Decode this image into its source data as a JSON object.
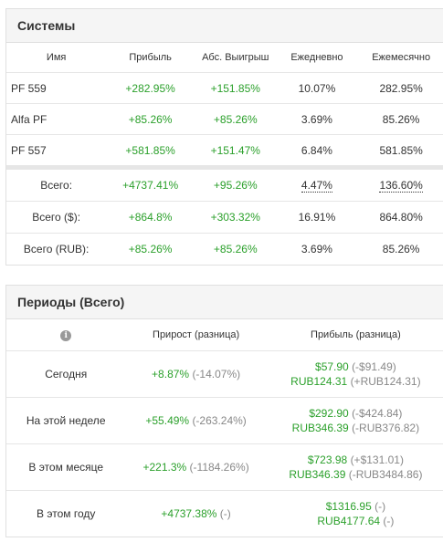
{
  "systems": {
    "title": "Системы",
    "columns": [
      "Имя",
      "Прибыль",
      "Абс. Выигрыш",
      "Ежедневно",
      "Ежемесячно"
    ],
    "rows": [
      {
        "name": "PF 559",
        "profit": "+282.95%",
        "abs": "+151.85%",
        "daily": "10.07%",
        "monthly": "282.95%"
      },
      {
        "name": "Alfa PF",
        "profit": "+85.26%",
        "abs": "+85.26%",
        "daily": "3.69%",
        "monthly": "85.26%"
      },
      {
        "name": "PF 557",
        "profit": "+581.85%",
        "abs": "+151.47%",
        "daily": "6.84%",
        "monthly": "581.85%"
      }
    ],
    "totals": [
      {
        "label": "Всего:",
        "profit": "+4737.41%",
        "abs": "+95.26%",
        "daily": "4.47%",
        "monthly": "136.60%"
      },
      {
        "label": "Всего ($):",
        "profit": "+864.8%",
        "abs": "+303.32%",
        "daily": "16.91%",
        "monthly": "864.80%"
      },
      {
        "label": "Всего (RUB):",
        "profit": "+85.26%",
        "abs": "+85.26%",
        "daily": "3.69%",
        "monthly": "85.26%"
      }
    ]
  },
  "periods": {
    "title": "Периоды (Всего)",
    "info_icon": "info-icon",
    "col_growth": "Прирост (разница)",
    "col_profit": "Прибыль (разница)",
    "rows": [
      {
        "label": "Сегодня",
        "growth": "+8.87%",
        "growth_diff": "(-14.07%)",
        "usd": "$57.90",
        "usd_diff": "(-$91.49)",
        "rub": "RUB124.31",
        "rub_diff": "(+RUB124.31)"
      },
      {
        "label": "На этой неделе",
        "growth": "+55.49%",
        "growth_diff": "(-263.24%)",
        "usd": "$292.90",
        "usd_diff": "(-$424.84)",
        "rub": "RUB346.39",
        "rub_diff": "(-RUB376.82)"
      },
      {
        "label": "В этом месяце",
        "growth": "+221.3%",
        "growth_diff": "(-1184.26%)",
        "usd": "$723.98",
        "usd_diff": "(+$131.01)",
        "rub": "RUB346.39",
        "rub_diff": "(-RUB3484.86)"
      },
      {
        "label": "В этом году",
        "growth": "+4737.38%",
        "growth_diff": "(-)",
        "usd": "$1316.95",
        "usd_diff": "(-)",
        "rub": "RUB4177.64",
        "rub_diff": "(-)"
      }
    ]
  },
  "colors": {
    "positive": "#2ba02b",
    "muted": "#888888",
    "header_bg": "#f5f5f5"
  }
}
